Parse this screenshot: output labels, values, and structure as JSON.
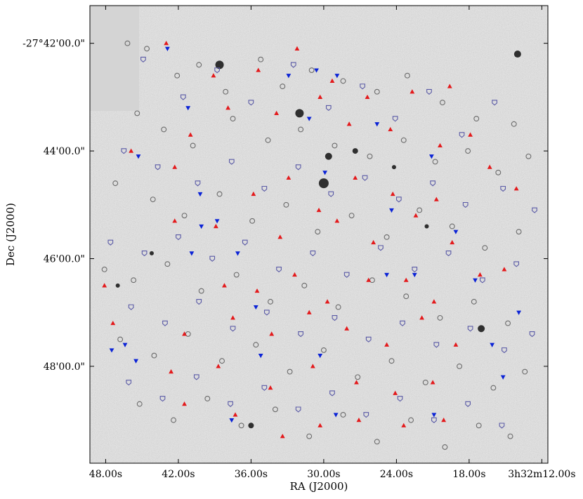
{
  "chart_data": {
    "type": "scatter",
    "xlabel": "RA (J2000)",
    "ylabel": "Dec (J2000)",
    "x_ticks": [
      {
        "label": "48.00s",
        "ra_sec": 48
      },
      {
        "label": "42.00s",
        "ra_sec": 42
      },
      {
        "label": "36.00s",
        "ra_sec": 36
      },
      {
        "label": "30.00s",
        "ra_sec": 30
      },
      {
        "label": "24.00s",
        "ra_sec": 24
      },
      {
        "label": "18.00s",
        "ra_sec": 18
      },
      {
        "label": "3h32m12.00s",
        "ra_sec": 12
      }
    ],
    "y_ticks": [
      {
        "label": "-27°42'00.0\"",
        "dec_arcmin": 42
      },
      {
        "label": "44'00.0\"",
        "dec_arcmin": 44
      },
      {
        "label": "46'00.0\"",
        "dec_arcmin": 46
      },
      {
        "label": "48'00.0\"",
        "dec_arcmin": 48
      }
    ],
    "xlim_ra_sec": [
      49.3,
      11.5
    ],
    "ylim_dec_arcmin": [
      41.3,
      49.8
    ],
    "background": "greyscale sky image (inverted), blank grey patch at top-left",
    "grid": false,
    "series": [
      {
        "marker": "open-circle",
        "color": "#6b6b6b",
        "points": [
          [
            46.2,
            42.0
          ],
          [
            44.6,
            42.1
          ],
          [
            42.1,
            42.6
          ],
          [
            40.3,
            42.4
          ],
          [
            38.1,
            42.9
          ],
          [
            35.2,
            42.3
          ],
          [
            33.4,
            42.8
          ],
          [
            31.0,
            42.5
          ],
          [
            28.4,
            42.7
          ],
          [
            25.6,
            42.9
          ],
          [
            23.1,
            42.6
          ],
          [
            20.2,
            43.1
          ],
          [
            17.4,
            43.4
          ],
          [
            14.3,
            43.5
          ],
          [
            45.4,
            43.3
          ],
          [
            43.2,
            43.6
          ],
          [
            40.8,
            43.9
          ],
          [
            37.5,
            43.4
          ],
          [
            34.6,
            43.8
          ],
          [
            31.9,
            43.6
          ],
          [
            29.1,
            43.9
          ],
          [
            26.2,
            44.1
          ],
          [
            23.4,
            43.8
          ],
          [
            20.8,
            44.2
          ],
          [
            18.1,
            44.0
          ],
          [
            15.6,
            44.4
          ],
          [
            13.1,
            44.1
          ],
          [
            47.2,
            44.6
          ],
          [
            44.1,
            44.9
          ],
          [
            41.5,
            45.2
          ],
          [
            38.6,
            44.8
          ],
          [
            35.9,
            45.3
          ],
          [
            33.1,
            45.0
          ],
          [
            30.5,
            45.5
          ],
          [
            27.7,
            45.2
          ],
          [
            24.8,
            45.6
          ],
          [
            22.1,
            45.1
          ],
          [
            19.4,
            45.4
          ],
          [
            16.7,
            45.8
          ],
          [
            13.9,
            45.5
          ],
          [
            48.1,
            46.2
          ],
          [
            45.7,
            46.4
          ],
          [
            42.9,
            46.1
          ],
          [
            40.1,
            46.6
          ],
          [
            37.2,
            46.3
          ],
          [
            34.4,
            46.8
          ],
          [
            31.6,
            46.5
          ],
          [
            28.8,
            46.9
          ],
          [
            26.0,
            46.4
          ],
          [
            23.2,
            46.7
          ],
          [
            20.4,
            47.1
          ],
          [
            17.6,
            46.8
          ],
          [
            14.8,
            47.2
          ],
          [
            46.8,
            47.5
          ],
          [
            44.0,
            47.8
          ],
          [
            41.2,
            47.4
          ],
          [
            38.4,
            47.9
          ],
          [
            35.6,
            47.6
          ],
          [
            32.8,
            48.1
          ],
          [
            30.0,
            47.7
          ],
          [
            27.2,
            48.2
          ],
          [
            24.4,
            47.9
          ],
          [
            21.6,
            48.3
          ],
          [
            18.8,
            48.0
          ],
          [
            16.0,
            48.4
          ],
          [
            13.4,
            48.1
          ],
          [
            45.2,
            48.7
          ],
          [
            42.4,
            49.0
          ],
          [
            39.6,
            48.6
          ],
          [
            36.8,
            49.1
          ],
          [
            34.0,
            48.8
          ],
          [
            31.2,
            49.3
          ],
          [
            28.4,
            48.9
          ],
          [
            25.6,
            49.4
          ],
          [
            22.8,
            49.0
          ],
          [
            20.0,
            49.5
          ],
          [
            17.2,
            49.1
          ],
          [
            14.6,
            49.3
          ]
        ]
      },
      {
        "marker": "open-shield",
        "color": "#5a5aa6",
        "points": [
          [
            44.9,
            42.3
          ],
          [
            41.6,
            43.0
          ],
          [
            38.8,
            42.5
          ],
          [
            36.0,
            43.1
          ],
          [
            32.5,
            42.4
          ],
          [
            29.6,
            43.2
          ],
          [
            26.8,
            42.8
          ],
          [
            24.1,
            43.4
          ],
          [
            21.3,
            42.9
          ],
          [
            18.6,
            43.7
          ],
          [
            15.9,
            43.1
          ],
          [
            46.5,
            44.0
          ],
          [
            43.7,
            44.3
          ],
          [
            40.4,
            44.6
          ],
          [
            37.6,
            44.2
          ],
          [
            34.9,
            44.7
          ],
          [
            32.1,
            44.3
          ],
          [
            29.4,
            44.8
          ],
          [
            26.6,
            44.5
          ],
          [
            23.8,
            44.9
          ],
          [
            21.0,
            44.6
          ],
          [
            18.3,
            45.0
          ],
          [
            15.2,
            44.7
          ],
          [
            12.6,
            45.1
          ],
          [
            47.6,
            45.7
          ],
          [
            44.8,
            45.9
          ],
          [
            42.0,
            45.6
          ],
          [
            39.2,
            46.0
          ],
          [
            36.5,
            45.7
          ],
          [
            33.7,
            46.2
          ],
          [
            30.9,
            45.9
          ],
          [
            28.1,
            46.3
          ],
          [
            25.3,
            45.8
          ],
          [
            22.5,
            46.2
          ],
          [
            19.7,
            45.9
          ],
          [
            16.9,
            46.4
          ],
          [
            14.1,
            46.1
          ],
          [
            45.9,
            46.9
          ],
          [
            43.1,
            47.2
          ],
          [
            40.3,
            46.8
          ],
          [
            37.5,
            47.3
          ],
          [
            34.7,
            47.0
          ],
          [
            31.9,
            47.4
          ],
          [
            29.1,
            47.1
          ],
          [
            26.3,
            47.5
          ],
          [
            23.5,
            47.2
          ],
          [
            20.7,
            47.6
          ],
          [
            17.9,
            47.3
          ],
          [
            15.1,
            47.7
          ],
          [
            12.8,
            47.4
          ],
          [
            46.1,
            48.3
          ],
          [
            43.3,
            48.6
          ],
          [
            40.5,
            48.2
          ],
          [
            37.7,
            48.7
          ],
          [
            34.9,
            48.4
          ],
          [
            32.1,
            48.8
          ],
          [
            29.3,
            48.5
          ],
          [
            26.5,
            48.9
          ],
          [
            23.7,
            48.6
          ],
          [
            20.9,
            49.0
          ],
          [
            18.1,
            48.7
          ],
          [
            15.3,
            49.1
          ]
        ]
      },
      {
        "marker": "filled-triangle-up",
        "color": "#e31a1c",
        "points": [
          [
            43.0,
            42.0
          ],
          [
            39.1,
            42.6
          ],
          [
            35.4,
            42.5
          ],
          [
            32.2,
            42.1
          ],
          [
            29.3,
            42.7
          ],
          [
            26.4,
            43.0
          ],
          [
            22.7,
            42.9
          ],
          [
            19.6,
            42.8
          ],
          [
            41.0,
            43.7
          ],
          [
            37.9,
            43.2
          ],
          [
            33.9,
            43.3
          ],
          [
            30.3,
            43.0
          ],
          [
            27.9,
            43.5
          ],
          [
            24.5,
            43.6
          ],
          [
            20.4,
            43.9
          ],
          [
            17.9,
            43.7
          ],
          [
            45.9,
            44.0
          ],
          [
            42.3,
            44.3
          ],
          [
            35.8,
            44.8
          ],
          [
            32.9,
            44.5
          ],
          [
            30.4,
            45.1
          ],
          [
            27.4,
            44.5
          ],
          [
            24.3,
            44.8
          ],
          [
            20.7,
            44.9
          ],
          [
            16.3,
            44.3
          ],
          [
            14.1,
            44.7
          ],
          [
            42.3,
            45.3
          ],
          [
            38.9,
            45.4
          ],
          [
            33.6,
            45.6
          ],
          [
            28.9,
            45.3
          ],
          [
            25.9,
            45.7
          ],
          [
            22.4,
            45.2
          ],
          [
            19.4,
            45.7
          ],
          [
            17.1,
            46.3
          ],
          [
            15.1,
            46.2
          ],
          [
            48.1,
            46.5
          ],
          [
            38.2,
            46.5
          ],
          [
            35.5,
            46.6
          ],
          [
            32.4,
            46.3
          ],
          [
            29.7,
            46.8
          ],
          [
            26.3,
            46.4
          ],
          [
            23.2,
            46.4
          ],
          [
            20.9,
            46.8
          ],
          [
            47.4,
            47.2
          ],
          [
            41.5,
            47.4
          ],
          [
            37.5,
            47.1
          ],
          [
            34.3,
            47.4
          ],
          [
            31.2,
            47.0
          ],
          [
            28.1,
            47.3
          ],
          [
            24.8,
            47.6
          ],
          [
            21.9,
            47.1
          ],
          [
            19.1,
            47.6
          ],
          [
            42.6,
            48.1
          ],
          [
            38.7,
            48.0
          ],
          [
            34.4,
            48.4
          ],
          [
            30.9,
            48.0
          ],
          [
            27.3,
            48.3
          ],
          [
            24.1,
            48.5
          ],
          [
            21.0,
            48.3
          ],
          [
            41.5,
            48.7
          ],
          [
            37.3,
            48.9
          ],
          [
            33.4,
            49.3
          ],
          [
            30.3,
            49.1
          ],
          [
            27.1,
            49.0
          ],
          [
            23.4,
            49.1
          ],
          [
            20.1,
            49.0
          ]
        ]
      },
      {
        "marker": "filled-triangle-down",
        "color": "#0b23d6",
        "points": [
          [
            42.9,
            42.1
          ],
          [
            32.9,
            42.6
          ],
          [
            30.6,
            42.5
          ],
          [
            28.9,
            42.6
          ],
          [
            41.2,
            43.2
          ],
          [
            31.2,
            43.4
          ],
          [
            25.6,
            43.5
          ],
          [
            21.1,
            44.1
          ],
          [
            45.3,
            44.1
          ],
          [
            40.2,
            44.8
          ],
          [
            40.1,
            45.4
          ],
          [
            38.8,
            45.3
          ],
          [
            40.9,
            45.9
          ],
          [
            37.1,
            45.9
          ],
          [
            29.9,
            44.4
          ],
          [
            24.4,
            45.1
          ],
          [
            19.1,
            45.5
          ],
          [
            22.5,
            46.3
          ],
          [
            17.5,
            46.4
          ],
          [
            35.6,
            46.9
          ],
          [
            24.8,
            46.3
          ],
          [
            13.9,
            47.0
          ],
          [
            46.4,
            47.6
          ],
          [
            47.5,
            47.7
          ],
          [
            45.5,
            47.9
          ],
          [
            35.2,
            47.8
          ],
          [
            30.3,
            47.8
          ],
          [
            16.1,
            47.6
          ],
          [
            15.2,
            48.2
          ],
          [
            29.0,
            48.9
          ],
          [
            37.6,
            49.0
          ],
          [
            20.9,
            48.9
          ]
        ]
      }
    ]
  }
}
